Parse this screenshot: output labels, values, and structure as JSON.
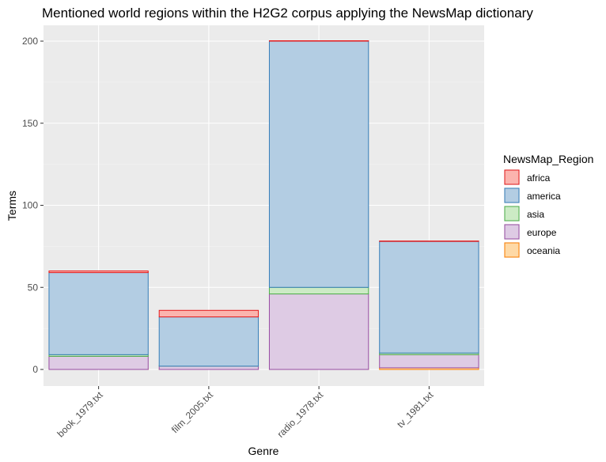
{
  "chart_data": {
    "type": "bar",
    "stacked": true,
    "title": "Mentioned world regions within the H2G2 corpus applying the NewsMap dictionary",
    "xlabel": "Genre",
    "ylabel": "Terms",
    "categories": [
      "book_1979.txt",
      "film_2005.txt",
      "radio_1978.txt",
      "tv_1981.txt"
    ],
    "ylim": [
      0,
      200
    ],
    "yticks": [
      0,
      50,
      100,
      150,
      200
    ],
    "grid": true,
    "legend": {
      "title": "NewsMap_Region",
      "position": "right"
    },
    "series": [
      {
        "name": "oceania",
        "fill": "#fed9a6",
        "stroke": "#ff7f00",
        "values": [
          0,
          0,
          0,
          1
        ]
      },
      {
        "name": "europe",
        "fill": "#decbe4",
        "stroke": "#984ea3",
        "values": [
          8,
          2,
          46,
          8
        ]
      },
      {
        "name": "asia",
        "fill": "#ccebc5",
        "stroke": "#4daf4a",
        "values": [
          1,
          0,
          4,
          1
        ]
      },
      {
        "name": "america",
        "fill": "#b3cde3",
        "stroke": "#377eb8",
        "values": [
          50,
          30,
          150,
          68
        ]
      },
      {
        "name": "africa",
        "fill": "#fbb4ae",
        "stroke": "#e41a1c",
        "values": [
          1,
          4,
          0,
          0
        ]
      }
    ],
    "legend_order": [
      "africa",
      "america",
      "asia",
      "europe",
      "oceania"
    ]
  }
}
